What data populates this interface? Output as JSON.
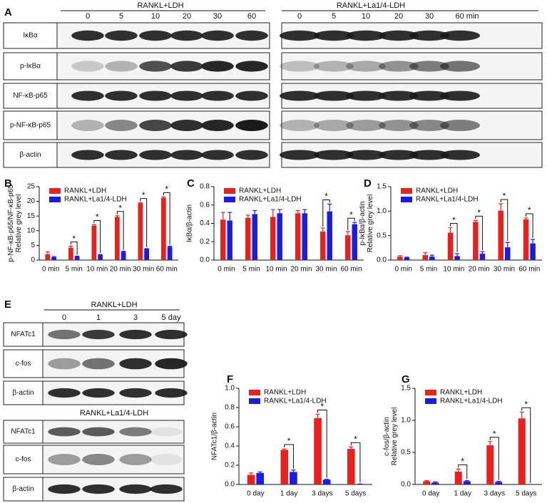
{
  "blots": [
    {
      "panel": "A",
      "groups": [
        {
          "label": "RANKL+LDH",
          "lanes": [
            "0",
            "5",
            "10",
            "20",
            "30",
            "60"
          ],
          "rows": [
            "IκBα",
            "p-IκBα",
            "NF-κB-p65",
            "p-NF-κB-p65",
            "β-actin"
          ]
        },
        {
          "label": "RANKL+La1/4-LDH",
          "lanes": [
            "0",
            "5",
            "10",
            "20",
            "30",
            "60 min"
          ]
        }
      ]
    },
    {
      "panel": "E",
      "groups": [
        {
          "label": "RANKL+LDH",
          "lanes": [
            "0",
            "1",
            "3",
            "5 day"
          ],
          "rows": [
            "NFATc1",
            "c-fos",
            "β-actin"
          ]
        },
        {
          "label": "RANKL+La1/4-LDH",
          "rows": [
            "NFATc1",
            "c-fos",
            "β-actin"
          ]
        }
      ]
    }
  ],
  "chart_data": [
    {
      "type": "bar",
      "panel": "B",
      "ylabel": [
        "p-NF-κB-p65/NF-κB-p65",
        "Relative grey level"
      ],
      "categories": [
        "0 min",
        "5 min",
        "10 min",
        "20 min",
        "30 min",
        "60 min"
      ],
      "series": [
        {
          "name": "RANKL+LDH",
          "color": "#e8201e",
          "values": [
            2.0,
            4.2,
            11.7,
            14.7,
            19.3,
            21.2
          ],
          "errors": [
            0.8,
            0.5,
            0.3,
            0.4,
            0.2,
            0.3
          ]
        },
        {
          "name": "RANKL+La1/4-LDH",
          "color": "#1c1ce0",
          "values": [
            1.0,
            1.2,
            1.8,
            2.8,
            3.8,
            4.5
          ],
          "errors": [
            0.2,
            0.1,
            0.1,
            0.2,
            0.1,
            0.2
          ]
        }
      ],
      "ylim": [
        0,
        25
      ],
      "yticks": [
        0,
        5,
        10,
        15,
        20,
        25
      ],
      "legend": "upper left",
      "annotations": [
        {
          "text": "*",
          "category": "5 min"
        },
        {
          "text": "*",
          "category": "10 min"
        },
        {
          "text": "*",
          "category": "20 min"
        },
        {
          "text": "*",
          "category": "30 min"
        },
        {
          "text": "*",
          "category": "60 min"
        }
      ]
    },
    {
      "type": "bar",
      "panel": "C",
      "ylabel": [
        "IκBα/β-actin"
      ],
      "categories": [
        "0 min",
        "5 min",
        "10 min",
        "20 min",
        "30 min",
        "60 min"
      ],
      "series": [
        {
          "name": "RANKL+LDH",
          "color": "#e8201e",
          "values": [
            0.44,
            0.46,
            0.47,
            0.51,
            0.31,
            0.27
          ],
          "errors": [
            0.08,
            0.03,
            0.08,
            0.03,
            0.04,
            0.04
          ]
        },
        {
          "name": "RANKL+La1/4-LDH",
          "color": "#1c1ce0",
          "values": [
            0.43,
            0.5,
            0.51,
            0.51,
            0.53,
            0.39
          ],
          "errors": [
            0.09,
            0.04,
            0.04,
            0.04,
            0.08,
            0.02
          ]
        }
      ],
      "ylim": [
        0,
        0.8
      ],
      "yticks": [
        {
          "value": 0,
          "label": "0.0"
        },
        0.2,
        0.4,
        0.6,
        0.8
      ],
      "legend": "upper left",
      "annotations": [
        {
          "text": "*",
          "category": "30 min"
        },
        {
          "text": "*",
          "category": "60 min"
        }
      ]
    },
    {
      "type": "bar",
      "panel": "D",
      "ylabel": [
        "p-IκBα/β-actin",
        "Relative grey level"
      ],
      "categories": [
        "0 min",
        "5 min",
        "10 min",
        "20 min",
        "30 min",
        "60 min"
      ],
      "series": [
        {
          "name": "RANKL+LDH",
          "color": "#e8201e",
          "values": [
            0.07,
            0.1,
            0.56,
            0.78,
            1.01,
            0.83
          ],
          "errors": [
            0.02,
            0.05,
            0.1,
            0.03,
            0.14,
            0.03
          ]
        },
        {
          "name": "RANKL+La1/4-LDH",
          "color": "#1c1ce0",
          "values": [
            0.05,
            0.07,
            0.08,
            0.13,
            0.26,
            0.34
          ],
          "errors": [
            0.01,
            0.03,
            0.05,
            0.04,
            0.1,
            0.08
          ]
        }
      ],
      "ylim": [
        0,
        1.5
      ],
      "yticks": [
        {
          "value": 0,
          "label": "0.0"
        },
        0.5,
        {
          "value": 1,
          "label": "1.0"
        },
        1.5
      ],
      "legend": "upper left",
      "annotations": [
        {
          "text": "*",
          "category": "10 min"
        },
        {
          "text": "*",
          "category": "20 min"
        },
        {
          "text": "*",
          "category": "30 min"
        },
        {
          "text": "*",
          "category": "60 min"
        }
      ]
    },
    {
      "type": "bar",
      "panel": "F",
      "ylabel": [
        "NFATc1/β-actin"
      ],
      "categories": [
        "0 day",
        "1 day",
        "3 days",
        "5 days"
      ],
      "series": [
        {
          "name": "RANKL+LDH",
          "color": "#e8201e",
          "values": [
            0.1,
            0.36,
            0.69,
            0.37
          ],
          "errors": [
            0.02,
            0.01,
            0.04,
            0.02
          ]
        },
        {
          "name": "RANKL+La1/4-LDH",
          "color": "#1c1ce0",
          "values": [
            0.12,
            0.13,
            0.05,
            0.005
          ],
          "errors": [
            0.01,
            0.02,
            0.005,
            0
          ]
        }
      ],
      "ylim": [
        0,
        1
      ],
      "yticks": [
        {
          "value": 0,
          "label": "0.0"
        },
        0.2,
        0.4,
        0.6,
        0.8,
        {
          "value": 1,
          "label": "1.0"
        }
      ],
      "legend": "upper left",
      "annotations": [
        {
          "text": "*",
          "category": "1 day"
        },
        {
          "text": "*",
          "category": "3 days"
        },
        {
          "text": "*",
          "category": "5 days"
        }
      ]
    },
    {
      "type": "bar",
      "panel": "G",
      "ylabel": [
        "c-fos/β-actin",
        "Relative grey level"
      ],
      "categories": [
        "0 day",
        "1 day",
        "3 days",
        "5 days"
      ],
      "series": [
        {
          "name": "RANKL+LDH",
          "color": "#e8201e",
          "values": [
            0.05,
            0.2,
            0.61,
            1.03
          ],
          "errors": [
            0.01,
            0.04,
            0.06,
            0.1
          ]
        },
        {
          "name": "RANKL+La1/4-LDH",
          "color": "#1c1ce0",
          "values": [
            0.03,
            0.05,
            0.04,
            0
          ],
          "errors": [
            0.01,
            0.01,
            0.01,
            0
          ]
        }
      ],
      "ylim": [
        0,
        1.5
      ],
      "yticks": [
        {
          "value": 0,
          "label": "0.0"
        },
        0.5,
        {
          "value": 1,
          "label": "1.0"
        },
        1.5
      ],
      "legend": "upper left",
      "annotations": [
        {
          "text": "*",
          "category": "1 day"
        },
        {
          "text": "*",
          "category": "3 days"
        },
        {
          "text": "*",
          "category": "5 days"
        }
      ]
    }
  ]
}
